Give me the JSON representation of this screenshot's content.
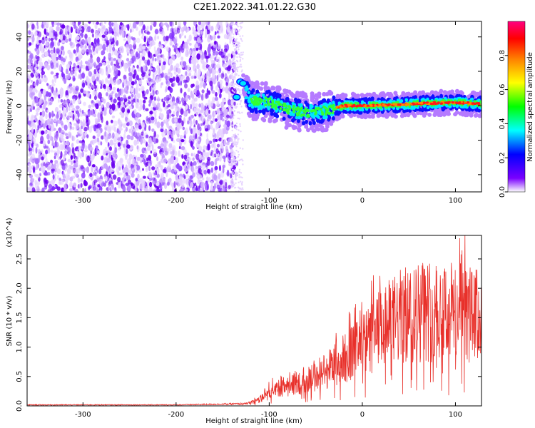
{
  "figure_title": "C2E1.2022.341.01.22.G30",
  "chart_data": [
    {
      "type": "heatmap",
      "xlabel": "Height of straight line (km)",
      "ylabel": "Frequency (Hz)",
      "xlim": [
        -360,
        128
      ],
      "ylim": [
        -50,
        49
      ],
      "x_ticks": [
        -300,
        -200,
        -100,
        0,
        100
      ],
      "y_ticks": [
        -40,
        -20,
        0,
        20,
        40
      ],
      "noise_region_x": [
        -360,
        -135
      ],
      "data_gap_x": [
        -135,
        -128
      ],
      "signal_track": [
        {
          "x": -140,
          "y": 5
        },
        {
          "x": -130,
          "y": 14
        },
        {
          "x": -120,
          "y": 3
        },
        {
          "x": -100,
          "y": 2
        },
        {
          "x": -80,
          "y": -2
        },
        {
          "x": -60,
          "y": -4
        },
        {
          "x": -40,
          "y": -3
        },
        {
          "x": -20,
          "y": 0
        },
        {
          "x": 0,
          "y": 0
        },
        {
          "x": 50,
          "y": 1
        },
        {
          "x": 100,
          "y": 2
        },
        {
          "x": 128,
          "y": 1
        }
      ],
      "colorbar": {
        "label": "Normalized spectral amplitude",
        "range": [
          0,
          1
        ],
        "ticks": [
          0.0,
          0.2,
          0.4,
          0.6,
          0.8
        ],
        "colors": [
          "#ffffff",
          "#7a00ff",
          "#0000ff",
          "#00ffff",
          "#00ff00",
          "#ffff00",
          "#ff8000",
          "#ff0000",
          "#ff0080"
        ]
      }
    },
    {
      "type": "line",
      "xlabel": "Height of straight line (km)",
      "ylabel": "SNR (10 * v/v)",
      "multiplier": "(x10^4)",
      "xlim": [
        -360,
        128
      ],
      "ylim": [
        0,
        2.9
      ],
      "x_ticks": [
        -300,
        -200,
        -100,
        0,
        100
      ],
      "y_ticks": [
        0.0,
        0.5,
        1.0,
        1.5,
        2.0,
        2.5
      ],
      "y_tick_labels": [
        "0.0",
        "0.5",
        "1.0",
        "1.5",
        "2.0",
        "2.5"
      ],
      "color": "#e8302a",
      "series_envelope": [
        {
          "x": -360,
          "y": 0.02
        },
        {
          "x": -200,
          "y": 0.02
        },
        {
          "x": -125,
          "y": 0.04
        },
        {
          "x": -110,
          "y": 0.1
        },
        {
          "x": -100,
          "y": 0.3
        },
        {
          "x": -80,
          "y": 0.35
        },
        {
          "x": -60,
          "y": 0.45
        },
        {
          "x": -40,
          "y": 0.6
        },
        {
          "x": -20,
          "y": 0.8
        },
        {
          "x": 0,
          "y": 1.0
        },
        {
          "x": 20,
          "y": 1.3
        },
        {
          "x": 40,
          "y": 1.5
        },
        {
          "x": 60,
          "y": 1.6
        },
        {
          "x": 80,
          "y": 1.65
        },
        {
          "x": 100,
          "y": 1.6
        },
        {
          "x": 128,
          "y": 1.5
        }
      ]
    }
  ]
}
